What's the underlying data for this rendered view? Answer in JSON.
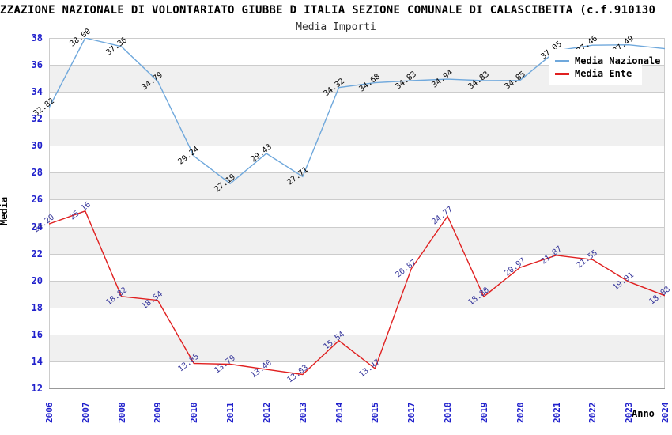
{
  "header": {
    "title": "ZZAZIONE NAZIONALE DI VOLONTARIATO GIUBBE D ITALIA SEZIONE COMUNALE DI CALASCIBETTA (c.f.910130",
    "subtitle": "Media Importi"
  },
  "axes": {
    "x_label": "Anno",
    "y_label": "Media"
  },
  "legend": {
    "items": [
      {
        "label": "Media Nazionale",
        "color": "#6FA8DC"
      },
      {
        "label": "Media Ente",
        "color": "#E02020"
      }
    ]
  },
  "colors": {
    "tick_label": "#2020CC",
    "band_gray": "#F0F0F0",
    "gridline": "#CCCCCC",
    "axis_bottom": "#999999"
  },
  "chart_data": {
    "type": "line",
    "title": "Media Importi",
    "xlabel": "Anno",
    "ylabel": "Media",
    "ylim": [
      12,
      38
    ],
    "y_tick_step": 2,
    "grid": "horizontal-alternating-bands",
    "legend_position": "top-right",
    "categories": [
      "2006",
      "2007",
      "2008",
      "2009",
      "2010",
      "2011",
      "2012",
      "2013",
      "2014",
      "2015",
      "2017",
      "2018",
      "2019",
      "2020",
      "2021",
      "2022",
      "2023",
      "2024"
    ],
    "series": [
      {
        "name": "Media Nazionale",
        "color": "#6FA8DC",
        "label_color": "#000000",
        "values": [
          32.82,
          38.0,
          37.36,
          34.79,
          29.24,
          27.19,
          29.43,
          27.71,
          34.32,
          34.68,
          34.83,
          34.94,
          34.83,
          34.85,
          37.05,
          37.46,
          37.49,
          37.2
        ],
        "labels": [
          "32.82",
          "38.00",
          "37.36",
          "34.79",
          "29.24",
          "27.19",
          "29.43",
          "27.71",
          "34.32",
          "34.68",
          "34.83",
          "34.94",
          "34.83",
          "34.85",
          "37.05",
          "37.46",
          "37.49",
          ""
        ]
      },
      {
        "name": "Media Ente",
        "color": "#E02020",
        "label_color": "#333399",
        "values": [
          24.2,
          25.16,
          18.82,
          18.54,
          13.85,
          13.79,
          13.4,
          13.03,
          15.54,
          13.47,
          20.87,
          24.77,
          18.8,
          20.97,
          21.87,
          21.55,
          19.91,
          18.88
        ],
        "labels": [
          "24.20",
          "25.16",
          "18.82",
          "18.54",
          "13.85",
          "13.79",
          "13.40",
          "13.03",
          "15.54",
          "13.47",
          "20.87",
          "24.77",
          "18.80",
          "20.97",
          "21.87",
          "21.55",
          "19.91",
          "18.88"
        ]
      }
    ]
  }
}
